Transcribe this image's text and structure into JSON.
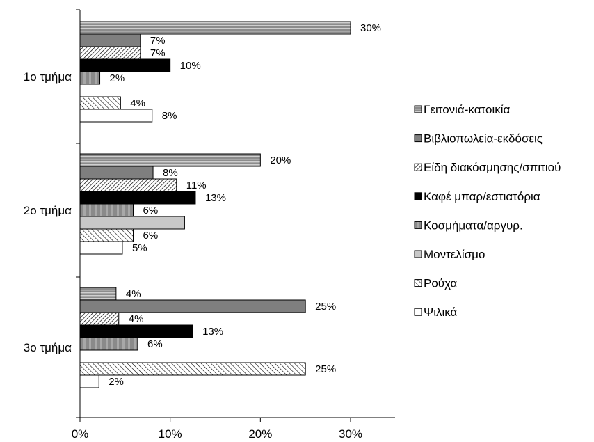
{
  "chart_data": {
    "type": "bar",
    "orientation": "horizontal",
    "title": "",
    "xlabel": "",
    "ylabel": "",
    "xlim": [
      0,
      0.35
    ],
    "x_ticks": [
      {
        "value": 0,
        "label": "0%"
      },
      {
        "value": 0.1,
        "label": "10%"
      },
      {
        "value": 0.2,
        "label": "20%"
      },
      {
        "value": 0.3,
        "label": "30%"
      }
    ],
    "categories": [
      "1ο τμήμα",
      "2ο τμήμα",
      "3ο τμήμα"
    ],
    "legend_position": "right",
    "grid": false,
    "series": [
      {
        "name": "Γειτονιά-κατοικία",
        "fill": "#8c8c8c",
        "pattern": "h-stripes",
        "values": [
          0.3,
          0.2,
          0.04
        ],
        "labels": [
          "30%",
          "20%",
          "4%"
        ]
      },
      {
        "name": "Βιβλιοπωλεία-εκδόσεις",
        "fill": "#7f7f7f",
        "pattern": "solid",
        "values": [
          0.067,
          0.081,
          0.25
        ],
        "labels": [
          "7%",
          "8%",
          "25%"
        ]
      },
      {
        "name": "Είδη διακόσμησης/σπιτιού",
        "fill": "#ffffff",
        "pattern": "diag-fine",
        "values": [
          0.067,
          0.107,
          0.043
        ],
        "labels": [
          "7%",
          "11%",
          "4%"
        ]
      },
      {
        "name": "Καφέ μπαρ/εστιατόρια",
        "fill": "#000000",
        "pattern": "solid",
        "values": [
          0.1,
          0.128,
          0.125
        ],
        "labels": [
          "10%",
          "13%",
          "13%"
        ]
      },
      {
        "name": "Κοσμήματα/αργυρ.",
        "fill": "#8a8a8a",
        "pattern": "v-stripes",
        "values": [
          0.022,
          0.059,
          0.064
        ],
        "labels": [
          "2%",
          "6%",
          "6%"
        ]
      },
      {
        "name": "Μοντελίσμο",
        "fill": "#c8c8c8",
        "pattern": "solid",
        "values": [
          0,
          0.116,
          0
        ],
        "labels": [
          "",
          "",
          ""
        ]
      },
      {
        "name": "Ρούχα",
        "fill": "#ffffff",
        "pattern": "diag-wide",
        "values": [
          0.045,
          0.059,
          0.25
        ],
        "labels": [
          "4%",
          "6%",
          "25%"
        ]
      },
      {
        "name": "Ψιλικά",
        "fill": "#ffffff",
        "pattern": "solid",
        "values": [
          0.08,
          0.047,
          0.021
        ],
        "labels": [
          "8%",
          "5%",
          "2%"
        ]
      }
    ]
  }
}
